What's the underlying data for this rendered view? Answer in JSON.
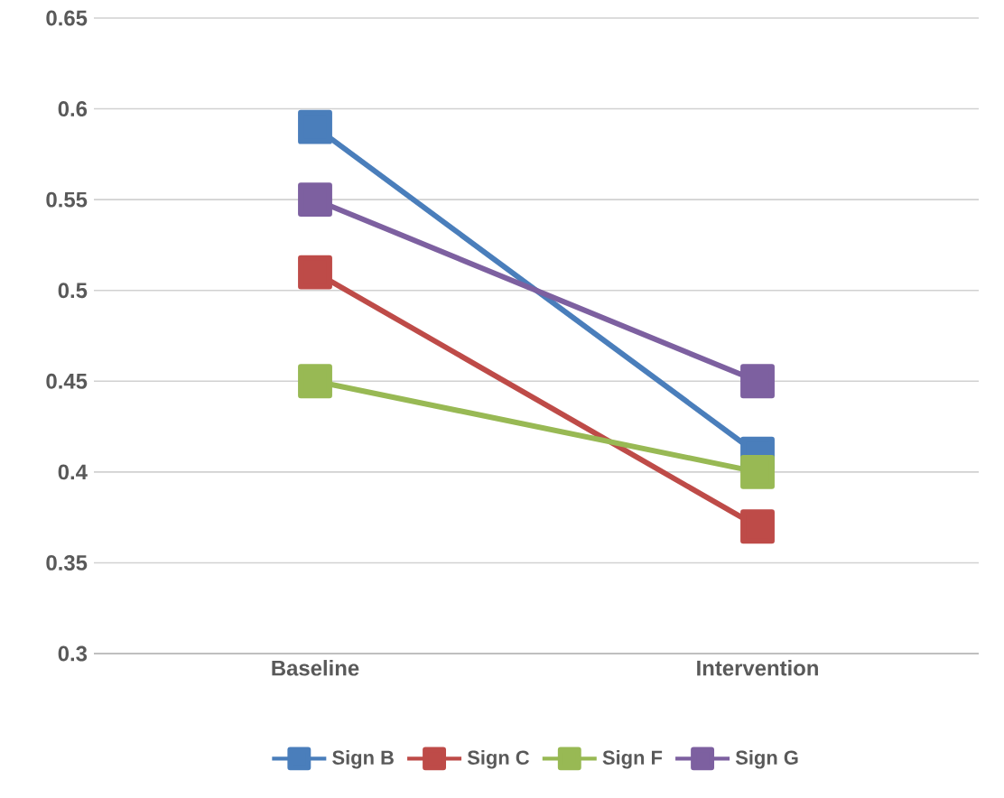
{
  "chart_data": {
    "type": "line",
    "categories": [
      "Baseline",
      "Intervention"
    ],
    "series": [
      {
        "name": "Sign B",
        "color": "#4a7ebb",
        "values": [
          0.59,
          0.41
        ]
      },
      {
        "name": "Sign C",
        "color": "#be4b48",
        "values": [
          0.51,
          0.37
        ]
      },
      {
        "name": "Sign F",
        "color": "#98b954",
        "values": [
          0.45,
          0.4
        ]
      },
      {
        "name": "Sign G",
        "color": "#7d60a0",
        "values": [
          0.55,
          0.45
        ]
      }
    ],
    "ylim": [
      0.3,
      0.65
    ],
    "yticks": [
      0.3,
      0.35,
      0.4,
      0.45,
      0.5,
      0.55,
      0.6,
      0.65
    ],
    "grid": "y",
    "legend": "bottom",
    "marker": "square",
    "line_style": "solid"
  }
}
